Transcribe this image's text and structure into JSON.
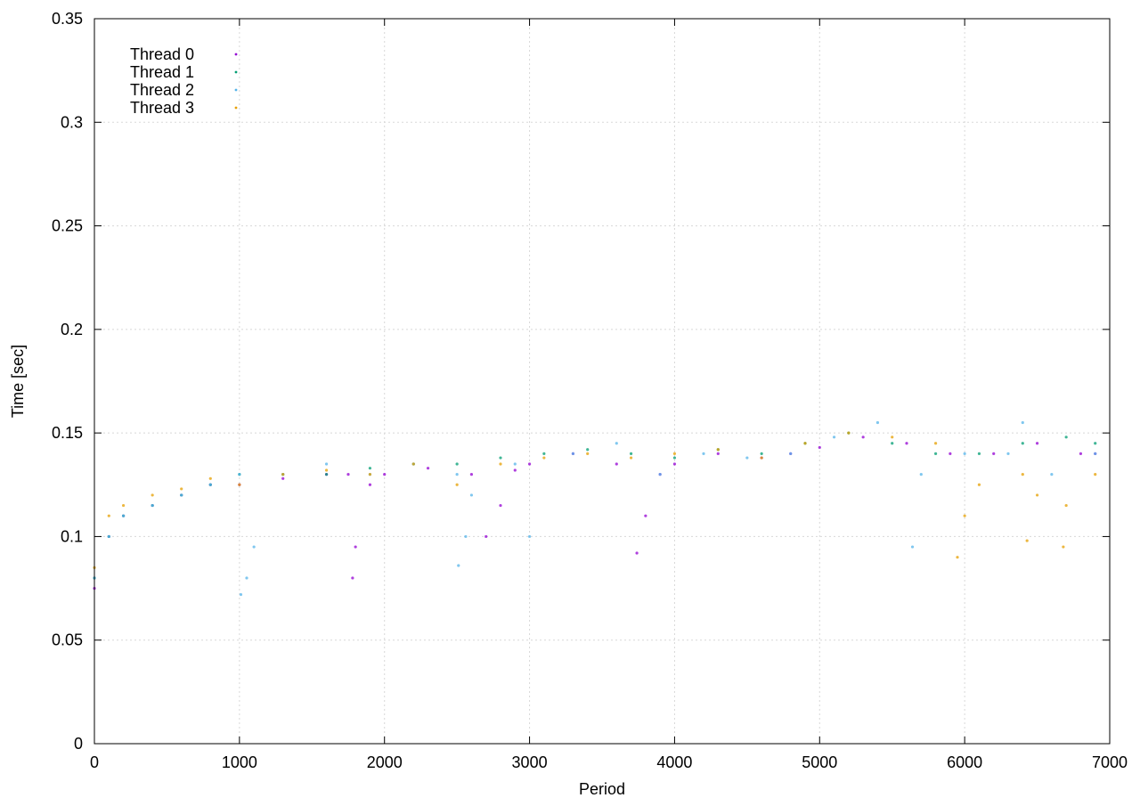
{
  "chart_data": {
    "type": "scatter",
    "title": "",
    "xlabel": "Period",
    "ylabel": "Time [sec]",
    "xlim": [
      0,
      7000
    ],
    "ylim": [
      0,
      0.35
    ],
    "x_ticks": [
      0,
      1000,
      2000,
      3000,
      4000,
      5000,
      6000,
      7000
    ],
    "y_ticks": [
      0,
      0.05,
      0.1,
      0.15,
      0.2,
      0.25,
      0.3,
      0.35
    ],
    "x_tick_labels": [
      "0",
      "1000",
      "2000",
      "3000",
      "4000",
      "5000",
      "6000",
      "7000"
    ],
    "y_tick_labels": [
      "0",
      "0.05",
      "0.1",
      "0.15",
      "0.2",
      "0.25",
      "0.3",
      "0.35"
    ],
    "grid": true,
    "legend_position": "top-left",
    "series": [
      {
        "name": "Thread 0",
        "color": "#9400d3",
        "x": [
          0,
          100,
          200,
          400,
          600,
          800,
          1000,
          1300,
          1600,
          1750,
          1780,
          1800,
          1900,
          2000,
          2300,
          2600,
          2700,
          2800,
          2900,
          3000,
          3300,
          3600,
          3740,
          3800,
          3900,
          4000,
          4300,
          4600,
          4800,
          5000,
          5300,
          5600,
          5900,
          6200,
          6500,
          6800,
          6900
        ],
        "y": [
          0.075,
          0.1,
          0.11,
          0.115,
          0.12,
          0.125,
          0.125,
          0.128,
          0.13,
          0.13,
          0.08,
          0.095,
          0.125,
          0.13,
          0.133,
          0.13,
          0.1,
          0.115,
          0.132,
          0.135,
          0.14,
          0.135,
          0.092,
          0.11,
          0.13,
          0.135,
          0.14,
          0.138,
          0.14,
          0.143,
          0.148,
          0.145,
          0.14,
          0.14,
          0.145,
          0.14,
          0.14
        ]
      },
      {
        "name": "Thread 1",
        "color": "#009e73",
        "x": [
          0,
          100,
          200,
          400,
          600,
          800,
          1000,
          1300,
          1600,
          1900,
          2200,
          2500,
          2800,
          3100,
          3400,
          3700,
          4000,
          4300,
          4600,
          4900,
          5200,
          5500,
          5800,
          6100,
          6400,
          6700,
          6900
        ],
        "y": [
          0.08,
          0.1,
          0.11,
          0.115,
          0.12,
          0.125,
          0.13,
          0.13,
          0.13,
          0.133,
          0.135,
          0.135,
          0.138,
          0.14,
          0.142,
          0.14,
          0.138,
          0.142,
          0.14,
          0.145,
          0.15,
          0.145,
          0.14,
          0.14,
          0.145,
          0.148,
          0.145
        ]
      },
      {
        "name": "Thread 2",
        "color": "#56b4e9",
        "x": [
          0,
          100,
          200,
          400,
          600,
          800,
          1000,
          1010,
          1050,
          1100,
          1300,
          1600,
          1900,
          2200,
          2500,
          2510,
          2560,
          2600,
          2900,
          3000,
          3300,
          3600,
          3900,
          4200,
          4500,
          4800,
          5100,
          5400,
          5640,
          5700,
          6000,
          6300,
          6400,
          6600,
          6900
        ],
        "y": [
          0.08,
          0.1,
          0.11,
          0.115,
          0.12,
          0.125,
          0.13,
          0.072,
          0.08,
          0.095,
          0.13,
          0.135,
          0.13,
          0.135,
          0.13,
          0.086,
          0.1,
          0.12,
          0.135,
          0.1,
          0.14,
          0.145,
          0.13,
          0.14,
          0.138,
          0.14,
          0.148,
          0.155,
          0.095,
          0.13,
          0.14,
          0.14,
          0.155,
          0.13,
          0.14
        ]
      },
      {
        "name": "Thread 3",
        "color": "#e69f00",
        "x": [
          0,
          100,
          200,
          400,
          600,
          800,
          1000,
          1300,
          1600,
          1900,
          2200,
          2500,
          2800,
          3100,
          3400,
          3700,
          4000,
          4300,
          4600,
          4900,
          5200,
          5500,
          5800,
          5950,
          6000,
          6100,
          6400,
          6430,
          6500,
          6680,
          6700,
          6900
        ],
        "y": [
          0.085,
          0.11,
          0.115,
          0.12,
          0.123,
          0.128,
          0.125,
          0.13,
          0.132,
          0.13,
          0.135,
          0.125,
          0.135,
          0.138,
          0.14,
          0.138,
          0.14,
          0.142,
          0.138,
          0.145,
          0.15,
          0.148,
          0.145,
          0.09,
          0.11,
          0.125,
          0.13,
          0.098,
          0.12,
          0.095,
          0.115,
          0.13
        ]
      }
    ]
  }
}
